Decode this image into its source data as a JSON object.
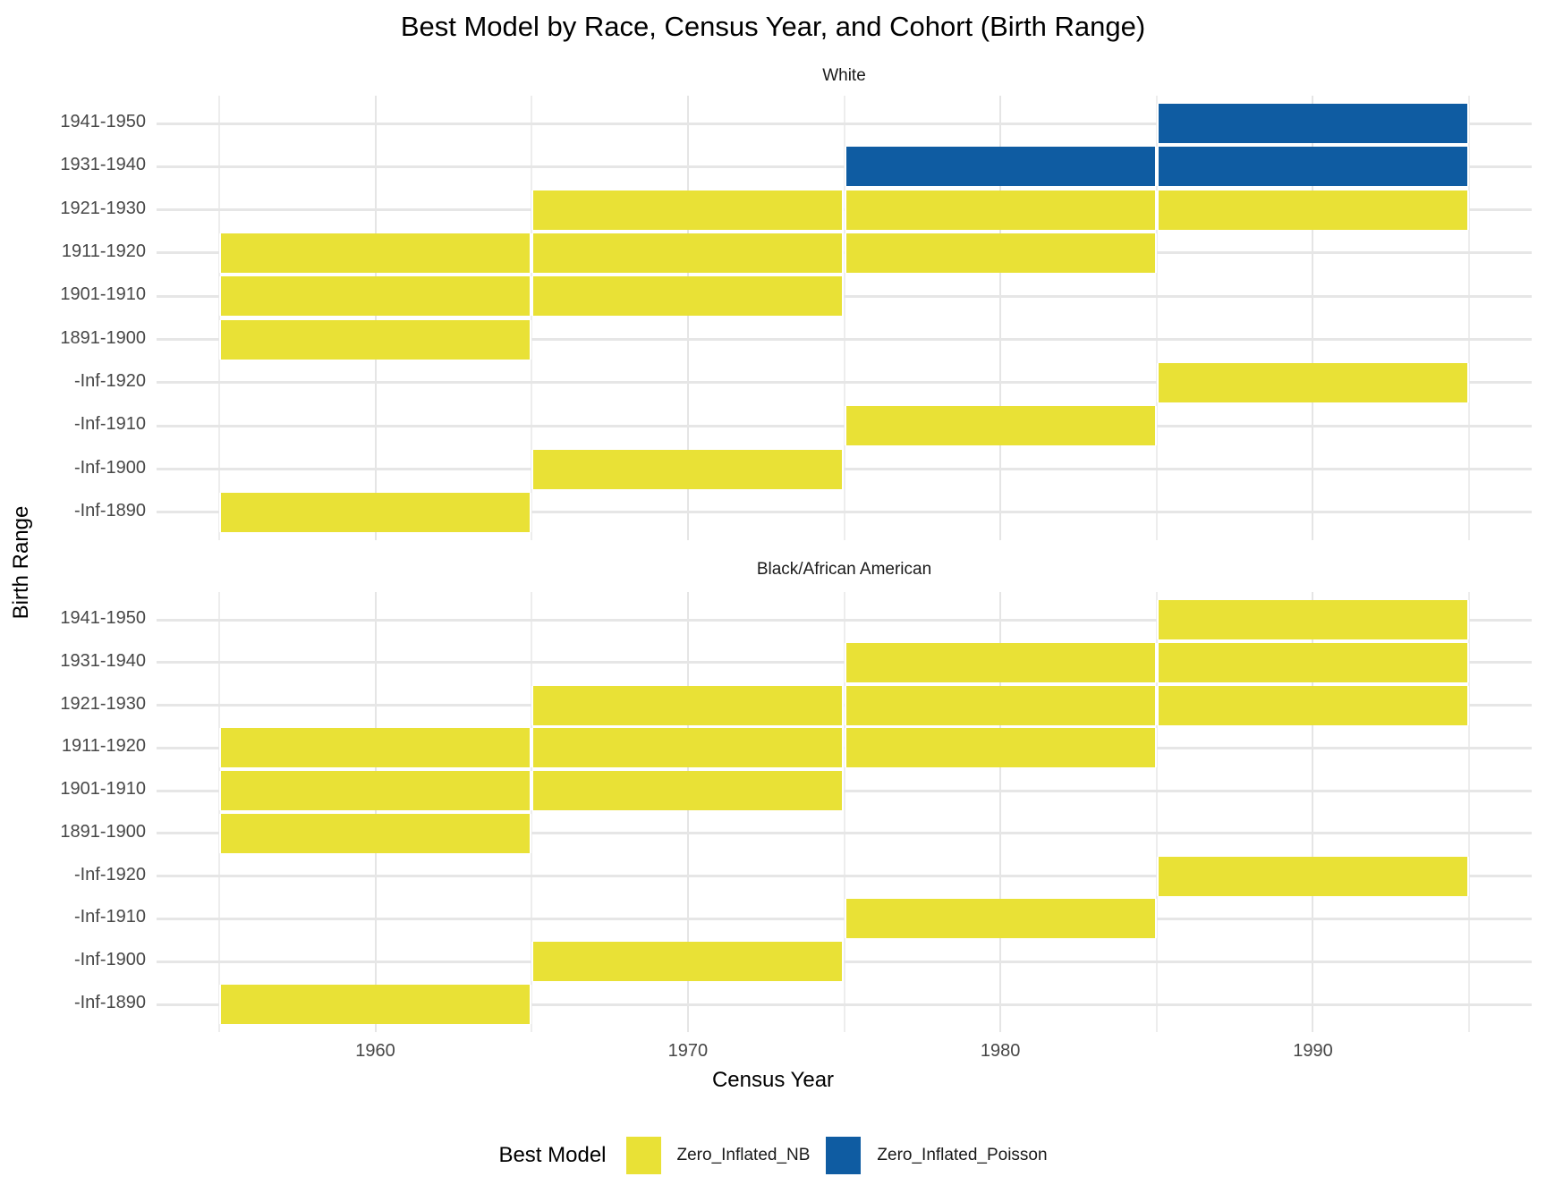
{
  "chart_data": {
    "type": "heatmap",
    "title": "Best Model by Race, Census Year, and Cohort (Birth Range)",
    "xlabel": "Census Year",
    "ylabel": "Birth Range",
    "x_ticks": [
      1960,
      1970,
      1980,
      1990
    ],
    "x_range": [
      1953,
      1997
    ],
    "tile_span_years": 10,
    "grid": {
      "on": true,
      "major_color": "#e5e5e5",
      "minor_color": "#ededed",
      "row_line_color": "#e6e6e6"
    },
    "y_categories": [
      "1941-1950",
      "1931-1940",
      "1921-1930",
      "1911-1920",
      "1901-1910",
      "1891-1900",
      "-Inf-1920",
      "-Inf-1910",
      "-Inf-1900",
      "-Inf-1890"
    ],
    "legend": {
      "position": "bottom",
      "title": "Best Model",
      "entries": [
        {
          "label": "Zero_Inflated_NB",
          "color": "#E9E136"
        },
        {
          "label": "Zero_Inflated_Poisson",
          "color": "#0F5CA2"
        }
      ]
    },
    "facets": [
      {
        "label": "White",
        "tiles": [
          {
            "birth_range": "1941-1950",
            "census_year": 1990,
            "model": "Zero_Inflated_Poisson"
          },
          {
            "birth_range": "1931-1940",
            "census_year": 1980,
            "model": "Zero_Inflated_Poisson"
          },
          {
            "birth_range": "1931-1940",
            "census_year": 1990,
            "model": "Zero_Inflated_Poisson"
          },
          {
            "birth_range": "1921-1930",
            "census_year": 1970,
            "model": "Zero_Inflated_NB"
          },
          {
            "birth_range": "1921-1930",
            "census_year": 1980,
            "model": "Zero_Inflated_NB"
          },
          {
            "birth_range": "1921-1930",
            "census_year": 1990,
            "model": "Zero_Inflated_NB"
          },
          {
            "birth_range": "1911-1920",
            "census_year": 1960,
            "model": "Zero_Inflated_NB"
          },
          {
            "birth_range": "1911-1920",
            "census_year": 1970,
            "model": "Zero_Inflated_NB"
          },
          {
            "birth_range": "1911-1920",
            "census_year": 1980,
            "model": "Zero_Inflated_NB"
          },
          {
            "birth_range": "1901-1910",
            "census_year": 1960,
            "model": "Zero_Inflated_NB"
          },
          {
            "birth_range": "1901-1910",
            "census_year": 1970,
            "model": "Zero_Inflated_NB"
          },
          {
            "birth_range": "1891-1900",
            "census_year": 1960,
            "model": "Zero_Inflated_NB"
          },
          {
            "birth_range": "-Inf-1920",
            "census_year": 1990,
            "model": "Zero_Inflated_NB"
          },
          {
            "birth_range": "-Inf-1910",
            "census_year": 1980,
            "model": "Zero_Inflated_NB"
          },
          {
            "birth_range": "-Inf-1900",
            "census_year": 1970,
            "model": "Zero_Inflated_NB"
          },
          {
            "birth_range": "-Inf-1890",
            "census_year": 1960,
            "model": "Zero_Inflated_NB"
          }
        ]
      },
      {
        "label": "Black/African American",
        "tiles": [
          {
            "birth_range": "1941-1950",
            "census_year": 1990,
            "model": "Zero_Inflated_NB"
          },
          {
            "birth_range": "1931-1940",
            "census_year": 1980,
            "model": "Zero_Inflated_NB"
          },
          {
            "birth_range": "1931-1940",
            "census_year": 1990,
            "model": "Zero_Inflated_NB"
          },
          {
            "birth_range": "1921-1930",
            "census_year": 1970,
            "model": "Zero_Inflated_NB"
          },
          {
            "birth_range": "1921-1930",
            "census_year": 1980,
            "model": "Zero_Inflated_NB"
          },
          {
            "birth_range": "1921-1930",
            "census_year": 1990,
            "model": "Zero_Inflated_NB"
          },
          {
            "birth_range": "1911-1920",
            "census_year": 1960,
            "model": "Zero_Inflated_NB"
          },
          {
            "birth_range": "1911-1920",
            "census_year": 1970,
            "model": "Zero_Inflated_NB"
          },
          {
            "birth_range": "1911-1920",
            "census_year": 1980,
            "model": "Zero_Inflated_NB"
          },
          {
            "birth_range": "1901-1910",
            "census_year": 1960,
            "model": "Zero_Inflated_NB"
          },
          {
            "birth_range": "1901-1910",
            "census_year": 1970,
            "model": "Zero_Inflated_NB"
          },
          {
            "birth_range": "1891-1900",
            "census_year": 1960,
            "model": "Zero_Inflated_NB"
          },
          {
            "birth_range": "-Inf-1920",
            "census_year": 1990,
            "model": "Zero_Inflated_NB"
          },
          {
            "birth_range": "-Inf-1910",
            "census_year": 1980,
            "model": "Zero_Inflated_NB"
          },
          {
            "birth_range": "-Inf-1900",
            "census_year": 1970,
            "model": "Zero_Inflated_NB"
          },
          {
            "birth_range": "-Inf-1890",
            "census_year": 1960,
            "model": "Zero_Inflated_NB"
          }
        ]
      }
    ]
  }
}
